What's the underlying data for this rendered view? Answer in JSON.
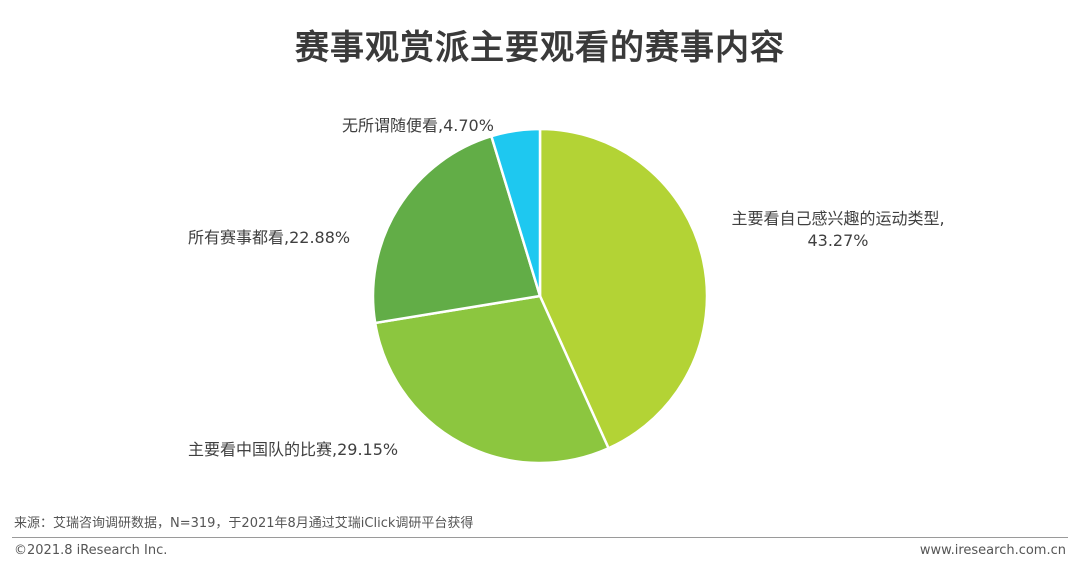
{
  "chart_data": {
    "type": "pie",
    "title": "赛事观赏派主要观看的赛事内容",
    "start_angle_deg": 0,
    "direction": "clockwise",
    "slices": [
      {
        "label": "主要看自己感兴趣的运动类型",
        "value": 43.27,
        "text_lines": [
          "主要看自己感兴趣的运动类型,",
          "43.27%"
        ],
        "color": "#b3d335"
      },
      {
        "label": "主要看中国队的比赛",
        "value": 29.15,
        "text_lines": [
          "主要看中国队的比赛,29.15%"
        ],
        "color": "#8cc63f"
      },
      {
        "label": "所有赛事都看",
        "value": 22.88,
        "text_lines": [
          "所有赛事都看,22.88%"
        ],
        "color": "#62ad47"
      },
      {
        "label": "无所谓随便看",
        "value": 4.7,
        "text_lines": [
          "无所谓随便看,4.70%"
        ],
        "color": "#1ec8f0"
      }
    ]
  },
  "footer": {
    "source": "来源：艾瑞咨询调研数据，N=319，于2021年8月通过艾瑞iClick调研平台获得",
    "copyright": "©2021.8 iResearch Inc.",
    "website": "www.iresearch.com.cn"
  }
}
